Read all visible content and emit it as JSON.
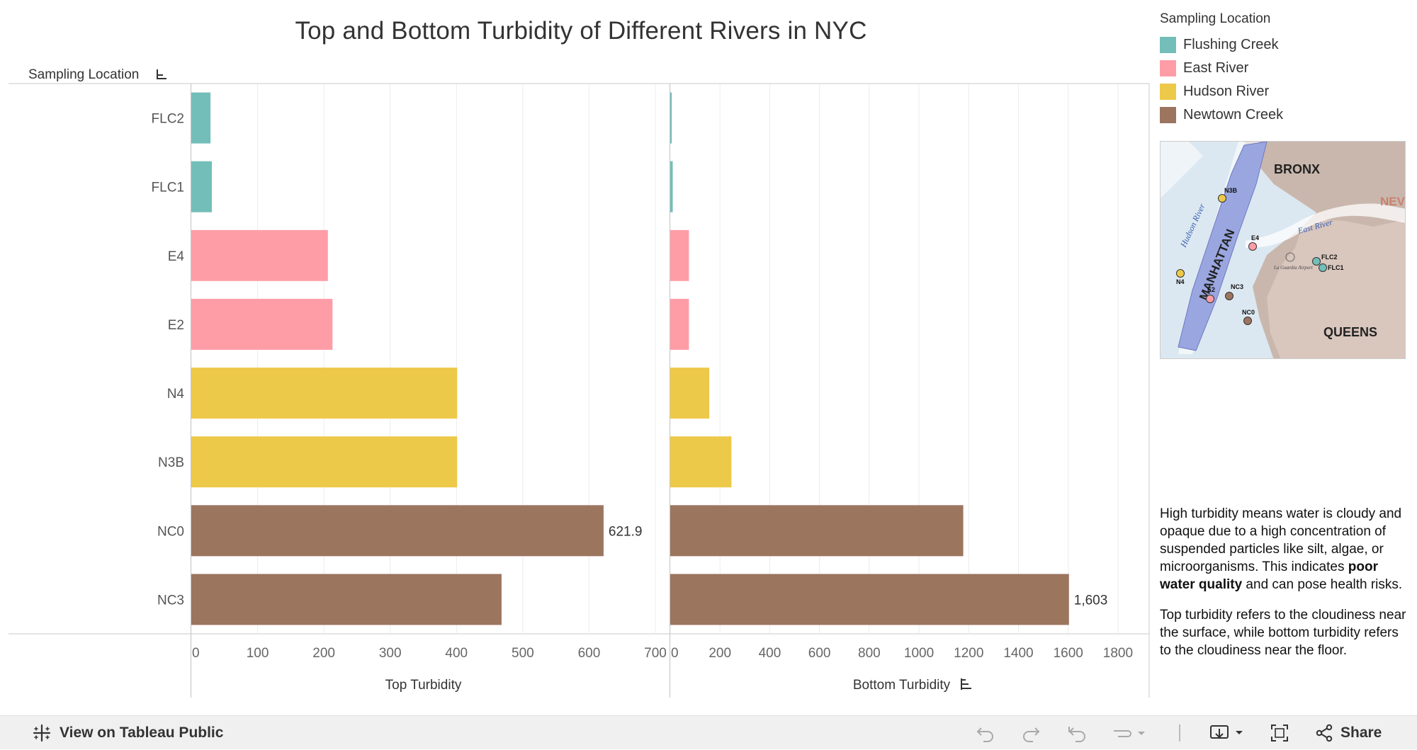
{
  "chart_data": {
    "type": "bar",
    "title": "Top and Bottom Turbidity of Different Rivers in NYC",
    "row_header": "Sampling Location",
    "categories": [
      "FLC2",
      "FLC1",
      "E4",
      "E2",
      "N4",
      "N3B",
      "NC0",
      "NC3"
    ],
    "category_color_keys": [
      "Flushing Creek",
      "Flushing Creek",
      "East River",
      "East River",
      "Hudson River",
      "Hudson River",
      "Newtown Creek",
      "Newtown Creek"
    ],
    "panels": [
      {
        "name": "top",
        "xlabel": "Top Turbidity",
        "xlim": [
          0,
          700
        ],
        "ticks": [
          "0",
          "100",
          "200",
          "300",
          "400",
          "500",
          "600",
          "700"
        ],
        "values": [
          29,
          31,
          206,
          213,
          401,
          401,
          621.9,
          468
        ],
        "data_labels": [
          null,
          null,
          null,
          null,
          null,
          null,
          "621.9",
          null
        ],
        "sorted_indicator": false
      },
      {
        "name": "bottom",
        "xlabel": "Bottom Turbidity",
        "xlim": [
          0,
          1860
        ],
        "ticks": [
          "0",
          "200",
          "400",
          "600",
          "800",
          "1000",
          "1200",
          "1400",
          "1600",
          "1800"
        ],
        "values": [
          6,
          10,
          75,
          75,
          157,
          246,
          1178,
          1603
        ],
        "data_labels": [
          null,
          null,
          null,
          null,
          null,
          null,
          null,
          "1,603"
        ],
        "sorted_indicator": true
      }
    ],
    "grid": true,
    "legend": {
      "title": "Sampling Location",
      "placement": "right",
      "items": [
        {
          "label": "Flushing Creek",
          "color": "#73BEB8"
        },
        {
          "label": "East River",
          "color": "#FF9DA7"
        },
        {
          "label": "Hudson River",
          "color": "#EDC949"
        },
        {
          "label": "Newtown Creek",
          "color": "#9C755F"
        }
      ]
    }
  },
  "map": {
    "labels": {
      "bronx": "BRONX",
      "manhattan": "MANHATTAN",
      "queens": "QUEENS",
      "new": "NEV",
      "east_river": "East River",
      "hudson_river": "Hudson River",
      "airport": "La Guardia Airport"
    },
    "markers": [
      {
        "label": "N3B",
        "color": "#EDC949"
      },
      {
        "label": "E4",
        "color": "#FF9DA7"
      },
      {
        "label": "N4",
        "color": "#EDC949"
      },
      {
        "label": "FLC2",
        "color": "#73BEB8"
      },
      {
        "label": "FLC1",
        "color": "#73BEB8"
      },
      {
        "label": "E2",
        "color": "#FF9DA7"
      },
      {
        "label": "NC3",
        "color": "#9C755F"
      },
      {
        "label": "NC0",
        "color": "#9C755F"
      }
    ]
  },
  "description": {
    "p1_before": "High turbidity means water is cloudy and opaque due to a high concentration of suspended particles like silt, algae, or microorganisms. This indicates ",
    "p1_bold": "poor water quality",
    "p1_after": " and can pose health risks.",
    "p2": "Top turbidity refers to the cloudiness near the surface, while bottom turbidity refers to the cloudiness near the floor."
  },
  "toolbar": {
    "view_label": "View on Tableau Public",
    "share_label": "Share",
    "icons": [
      "tableau-logo-icon",
      "undo-icon",
      "redo-icon",
      "revert-icon",
      "pause-icon",
      "download-icon",
      "fullscreen-icon",
      "share-icon"
    ]
  }
}
